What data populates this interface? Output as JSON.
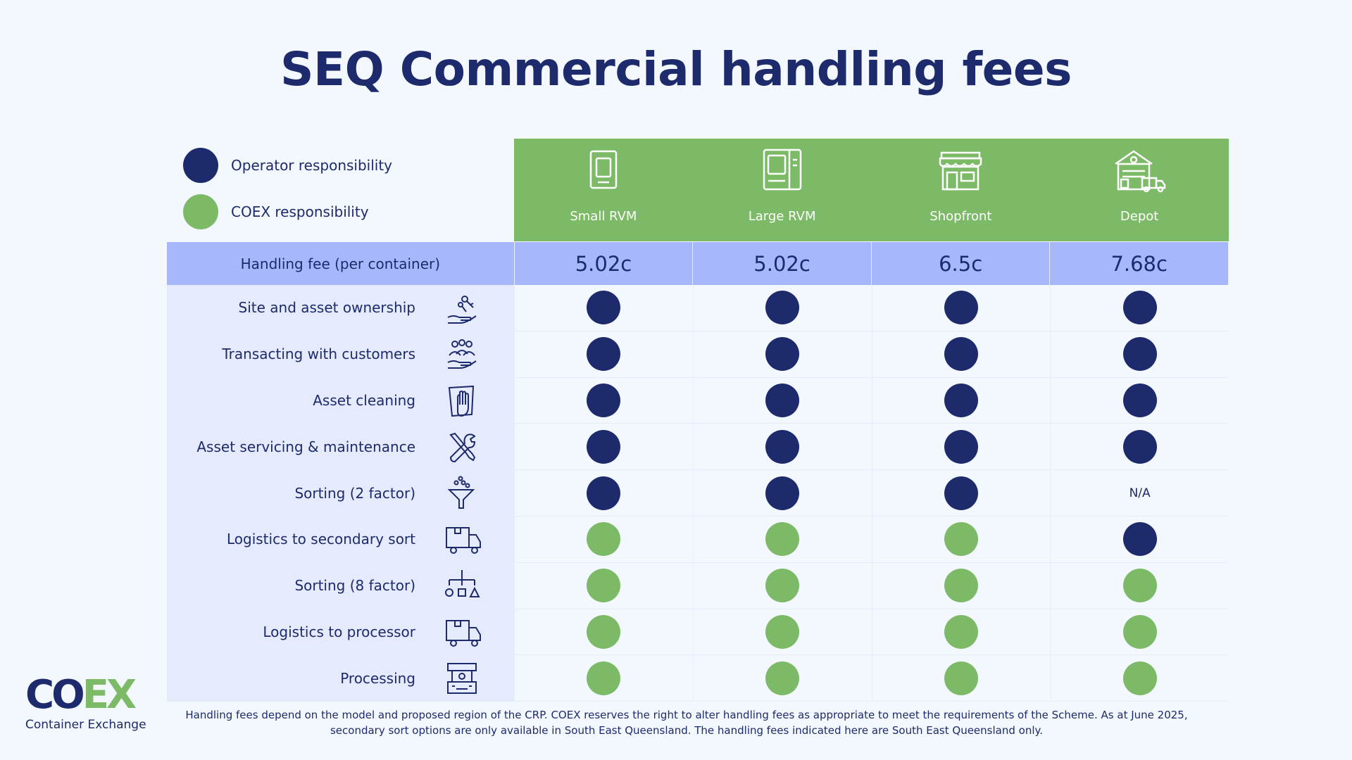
{
  "title": "SEQ Commercial handling fees",
  "colors": {
    "operator": "#1D2A6B",
    "coex": "#7DBA67",
    "header": "#7DBA67",
    "fee_row": "#A6B8FB"
  },
  "legend": [
    {
      "label": "Operator responsibility",
      "type": "operator"
    },
    {
      "label": "COEX responsibility",
      "type": "coex"
    }
  ],
  "columns": [
    {
      "label": "Small RVM",
      "icon": "small-rvm-icon"
    },
    {
      "label": "Large RVM",
      "icon": "large-rvm-icon"
    },
    {
      "label": "Shopfront",
      "icon": "shopfront-icon"
    },
    {
      "label": "Depot",
      "icon": "depot-icon"
    }
  ],
  "fee_row": {
    "label": "Handling fee (per container)",
    "values": [
      "5.02c",
      "5.02c",
      "6.5c",
      "7.68c"
    ]
  },
  "rows": [
    {
      "label": "Site and asset ownership",
      "icon": "hand-keys-icon",
      "cells": [
        "operator",
        "operator",
        "operator",
        "operator"
      ]
    },
    {
      "label": "Transacting with customers",
      "icon": "customers-hand-icon",
      "cells": [
        "operator",
        "operator",
        "operator",
        "operator"
      ]
    },
    {
      "label": "Asset cleaning",
      "icon": "cleaning-cloth-icon",
      "cells": [
        "operator",
        "operator",
        "operator",
        "operator"
      ]
    },
    {
      "label": "Asset servicing & maintenance",
      "icon": "tools-icon",
      "cells": [
        "operator",
        "operator",
        "operator",
        "operator"
      ]
    },
    {
      "label": "Sorting (2 factor)",
      "icon": "funnel-icon",
      "cells": [
        "operator",
        "operator",
        "operator",
        "N/A"
      ]
    },
    {
      "label": "Logistics to secondary sort",
      "icon": "truck-icon",
      "cells": [
        "coex",
        "coex",
        "coex",
        "operator"
      ]
    },
    {
      "label": "Sorting (8 factor)",
      "icon": "sorting-shapes-icon",
      "cells": [
        "coex",
        "coex",
        "coex",
        "coex"
      ]
    },
    {
      "label": "Logistics to processor",
      "icon": "truck-icon",
      "cells": [
        "coex",
        "coex",
        "coex",
        "coex"
      ]
    },
    {
      "label": "Processing",
      "icon": "processing-machine-icon",
      "cells": [
        "coex",
        "coex",
        "coex",
        "coex"
      ]
    }
  ],
  "logo": {
    "text_co": "CO",
    "text_ex": "EX",
    "subtitle": "Container Exchange"
  },
  "footnote": "Handling fees depend on the model and proposed region of the CRP. COEX reserves the right to alter handling fees as appropriate to meet the requirements of the Scheme. As at June 2025, secondary sort options are only available in South East Queensland. The handling fees indicated here are South East Queensland only."
}
